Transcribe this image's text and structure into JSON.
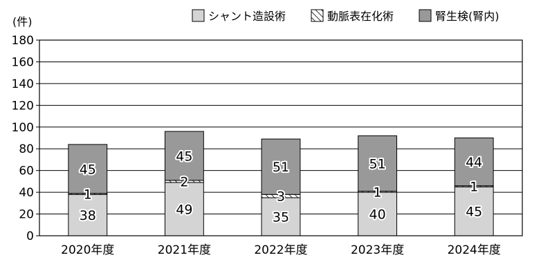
{
  "chart_data": {
    "type": "bar",
    "stacked": true,
    "unit_label": "(件)",
    "categories": [
      "2020年度",
      "2021年度",
      "2022年度",
      "2023年度",
      "2024年度"
    ],
    "series": [
      {
        "name": "シャント造設術",
        "values": [
          38,
          49,
          35,
          40,
          45
        ],
        "color": "#d4d4d4",
        "pattern": "solid"
      },
      {
        "name": "動脈表在化術",
        "values": [
          1,
          2,
          3,
          1,
          1
        ],
        "color": "#ffffff",
        "pattern": "hatch"
      },
      {
        "name": "腎生検(腎内)",
        "values": [
          45,
          45,
          51,
          51,
          44
        ],
        "color": "#999999",
        "pattern": "solid"
      }
    ],
    "ylim": [
      0,
      180
    ],
    "yticks": [
      0,
      20,
      40,
      60,
      80,
      100,
      120,
      140,
      160,
      180
    ],
    "grid": true,
    "legend_position": "top-right",
    "show_data_labels": true
  }
}
